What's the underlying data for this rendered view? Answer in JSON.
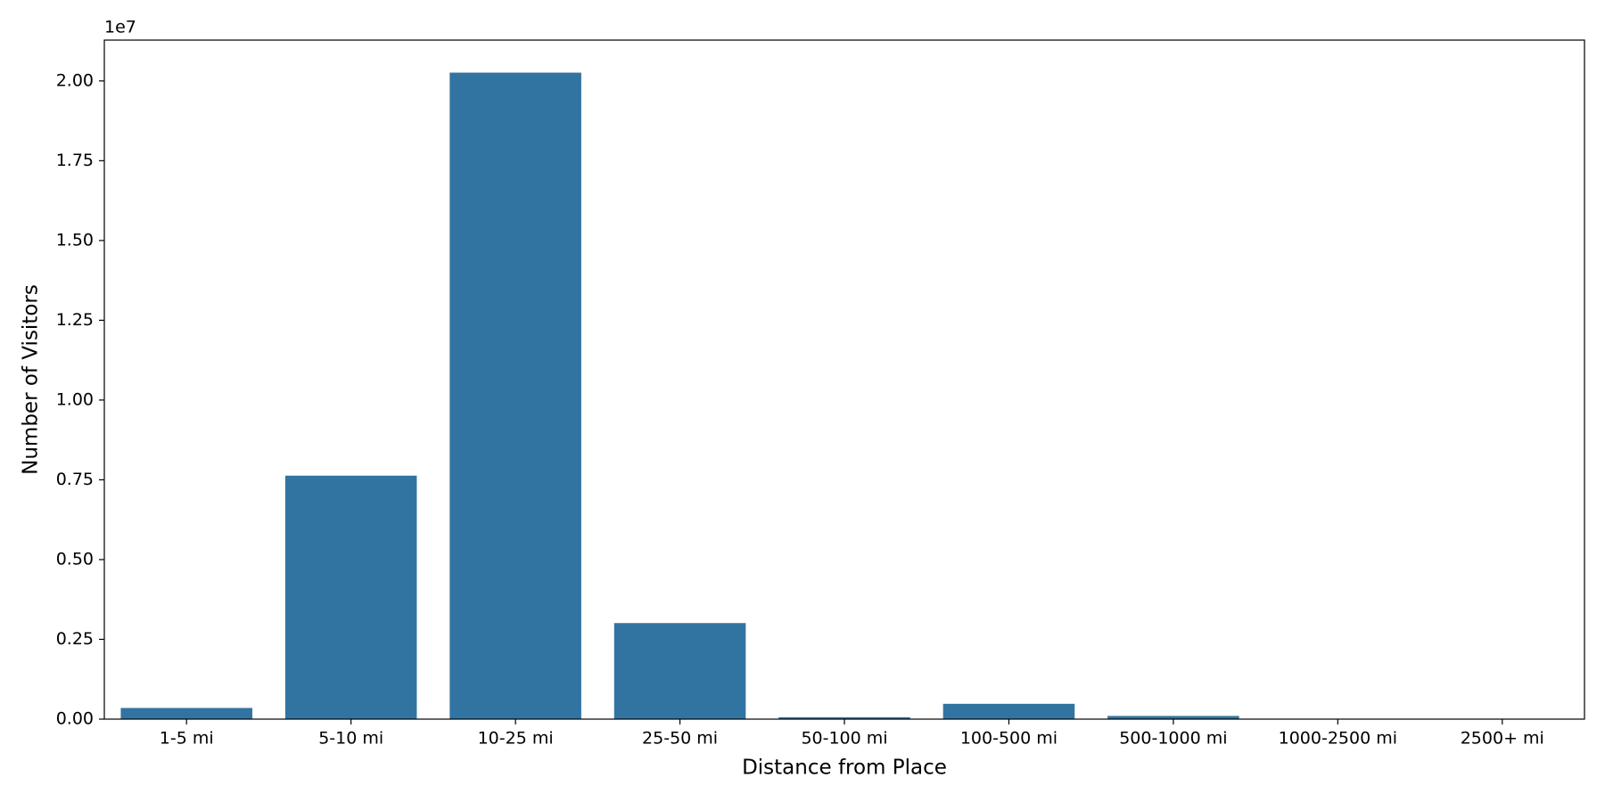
{
  "chart_data": {
    "type": "bar",
    "x_label": "Distance from Place",
    "y_label": "Number of Visitors",
    "y_offset_label": "1e7",
    "categories": [
      "1-5 mi",
      "5-10 mi",
      "10-25 mi",
      "25-50 mi",
      "50-100 mi",
      "100-500 mi",
      "500-1000 mi",
      "1000-2500 mi",
      "2500+ mi"
    ],
    "values": [
      0.035,
      0.763,
      2.026,
      0.301,
      0.006,
      0.048,
      0.01,
      0,
      0
    ],
    "color": "#3274a1",
    "ylim": [
      0,
      2.128
    ],
    "yticks": [
      {
        "value": 0,
        "label": "0.00"
      },
      {
        "value": 0.25,
        "label": "0.25"
      },
      {
        "value": 0.5,
        "label": "0.50"
      },
      {
        "value": 0.75,
        "label": "0.75"
      },
      {
        "value": 1,
        "label": "1.00"
      },
      {
        "value": 1.25,
        "label": "1.25"
      },
      {
        "value": 1.5,
        "label": "1.50"
      },
      {
        "value": 1.75,
        "label": "1.75"
      },
      {
        "value": 2,
        "label": "2.00"
      }
    ],
    "grid": false
  }
}
